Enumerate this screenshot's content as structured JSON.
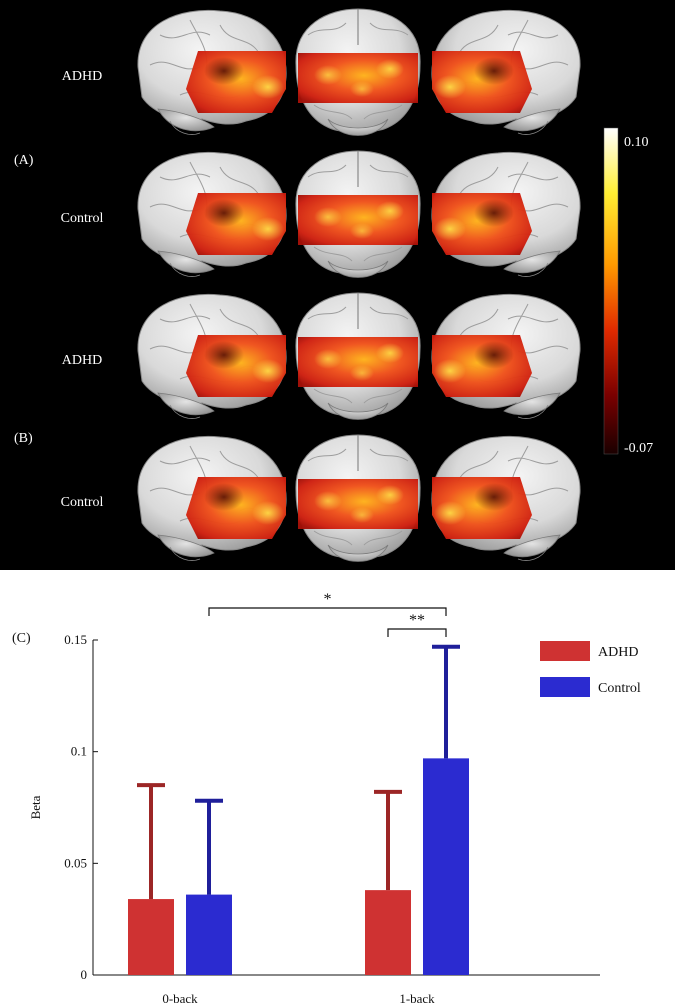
{
  "panel_labels": {
    "a": "(A)",
    "b": "(B)",
    "c": "(C)"
  },
  "brain_rows": [
    {
      "group": "ADHD",
      "panel": "A"
    },
    {
      "group": "Control",
      "panel": "A"
    },
    {
      "group": "ADHD",
      "panel": "B"
    },
    {
      "group": "Control",
      "panel": "B"
    }
  ],
  "colorbar": {
    "max_label": "0.10",
    "min_label": "-0.07",
    "max": 0.1,
    "min": -0.07,
    "colors": [
      "#ffffff",
      "#ffee33",
      "#ff9900",
      "#e02a00",
      "#7a0000",
      "#1a0000"
    ]
  },
  "chart_data": {
    "type": "bar",
    "categories": [
      "0-back",
      "1-back"
    ],
    "series": [
      {
        "name": "ADHD",
        "color": "#cf3232",
        "values": [
          0.034,
          0.038
        ],
        "errors": [
          0.051,
          0.044
        ]
      },
      {
        "name": "Control",
        "color": "#2b2bd0",
        "values": [
          0.036,
          0.097
        ],
        "errors": [
          0.042,
          0.05
        ]
      }
    ],
    "ylabel": "Beta",
    "xlabel": "",
    "ylim": [
      0,
      0.15
    ],
    "yticks": [
      0,
      0.05,
      0.1,
      0.15
    ],
    "ytick_labels": [
      "0",
      "0.05",
      "0.1",
      "0.15"
    ],
    "legend_position": "top-right",
    "significance": [
      {
        "label": "*",
        "from": "0-back Control",
        "to": "1-back Control"
      },
      {
        "label": "**",
        "from": "1-back ADHD",
        "to": "1-back Control"
      }
    ],
    "grid": false
  }
}
